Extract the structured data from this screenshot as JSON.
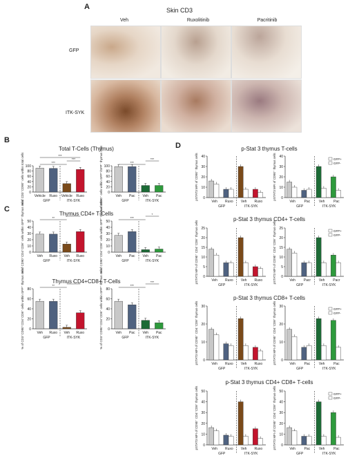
{
  "panel_a": {
    "letter": "A",
    "title": "Skin CD3",
    "columns": [
      "Veh",
      "Ruxolitinib",
      "Pacritinib"
    ],
    "rows": [
      "GFP",
      "ITK-SYK"
    ]
  },
  "panel_b": {
    "letter": "B",
    "title": "Total T-Cells (Thymus)"
  },
  "panel_c": {
    "letter": "C",
    "title1": "Thymus CD4+ T-Cells",
    "title2": "Thymus CD4+CD8+ T-Cells"
  },
  "panel_d": {
    "letter": "D",
    "titles": [
      "p-Stat 3 thymus T-cells",
      "p-Stat 3 thymus CD4+ T-cells",
      "p-Stat 3 thymus CD8+ T-cells",
      "p-Stat 3 thymus CD4+ CD8+ T-cells"
    ],
    "legend": [
      "GFP+",
      "GFP-"
    ]
  },
  "colors": {
    "veh_gfp": "#c8c8c8",
    "ruxo_gfp": "#4f6280",
    "veh_itk": "#7a4a1a",
    "ruxo_itk": "#c3142d",
    "pac_gfp": "#4f6280",
    "pac_itk": "#2e9a3c",
    "veh_itk_green": "#1c6b36"
  },
  "chart_data": [
    {
      "id": "B_left",
      "type": "bar",
      "ylabel": "% of CD3⁺CD90⁺ cells within total cells",
      "ylim": [
        0,
        100
      ],
      "yticks": [
        0,
        20,
        40,
        60,
        80,
        100
      ],
      "categories": [
        "Vehicle",
        "Ruxo",
        "Vehicle",
        "Ruxo"
      ],
      "groups": [
        "GFP",
        "ITK-SYK"
      ],
      "values": [
        91,
        90,
        32,
        86
      ],
      "sig": [
        "***",
        "***",
        "***"
      ]
    },
    {
      "id": "B_right",
      "type": "bar",
      "ylabel": "% of CD90⁺ cells within GFP⁺/GFP⁻ thymus cells",
      "ylim": [
        0,
        100
      ],
      "yticks": [
        0,
        20,
        40,
        60,
        80,
        100
      ],
      "categories": [
        "Veh",
        "Pac",
        "Veh",
        "Pac"
      ],
      "groups": [
        "GFP",
        "ITK-SYK"
      ],
      "values": [
        97,
        97,
        25,
        25
      ],
      "sig": [
        "***",
        "***"
      ]
    },
    {
      "id": "C1_left",
      "type": "bar",
      "ylabel": "% of CD90⁺CD4⁺CD8⁻ cells within GFP⁺ thymus cells",
      "ylim": [
        0,
        50
      ],
      "yticks": [
        0,
        10,
        20,
        30,
        40,
        50
      ],
      "categories": [
        "Veh",
        "Ruxo",
        "Veh",
        "Ruxo"
      ],
      "groups": [
        "GFP",
        "ITK-SYK"
      ],
      "values": [
        29,
        29,
        13,
        33
      ],
      "sig": [
        "**",
        "*"
      ]
    },
    {
      "id": "C1_right",
      "type": "bar",
      "ylabel": "% of CD90⁺CD4⁺CD8⁻ cells within GFP⁺ thymus cells",
      "ylim": [
        0,
        50
      ],
      "yticks": [
        0,
        10,
        20,
        30,
        40,
        50
      ],
      "categories": [
        "Veh",
        "Pac",
        "Veh",
        "Pac"
      ],
      "groups": [
        "GFP",
        "ITK-SYK"
      ],
      "values": [
        27,
        33,
        4,
        5
      ],
      "sig": [
        "***",
        "*"
      ]
    },
    {
      "id": "C2_left",
      "type": "bar",
      "ylabel": "% of CD3⁺CD90⁺CD4⁺CD8⁺ cells within GFP⁺ thymus cells",
      "ylim": [
        0,
        80
      ],
      "yticks": [
        0,
        20,
        40,
        60,
        80
      ],
      "categories": [
        "Veh",
        "Ruxo",
        "Veh",
        "Ruxo"
      ],
      "groups": [
        "GFP",
        "ITK-SYK"
      ],
      "values": [
        55,
        55,
        3,
        32
      ],
      "sig": [
        "**",
        "*"
      ]
    },
    {
      "id": "C2_right",
      "type": "bar",
      "ylabel": "% of CD3⁺CD90⁺CD4⁺CD8⁺ cells within GFP⁺ thymus cells",
      "ylim": [
        0,
        80
      ],
      "yticks": [
        0,
        20,
        40,
        60,
        80
      ],
      "categories": [
        "Veh",
        "Pac",
        "Veh",
        "Pac"
      ],
      "groups": [
        "GFP",
        "ITK-SYK"
      ],
      "values": [
        55,
        48,
        17,
        12
      ],
      "sig": [
        "***",
        "***"
      ]
    },
    {
      "id": "D1_left",
      "type": "bar",
      "ylabel": "pSTAT3 MFI of CD90⁺ thymus cells",
      "ylim": [
        0,
        40
      ],
      "yticks": [
        0,
        10,
        20,
        30,
        40
      ],
      "categories": [
        "Veh",
        "Ruxo",
        "Veh",
        "Ruxo"
      ],
      "groups": [
        "GFP",
        "ITK-SYK"
      ],
      "series": [
        {
          "name": "GFP+",
          "values": [
            16,
            8,
            30,
            8
          ]
        },
        {
          "name": "GFP-",
          "values": [
            13,
            8,
            8,
            5
          ]
        }
      ]
    },
    {
      "id": "D1_right",
      "type": "bar",
      "ylabel": "pSTAT3 MFI of CD90⁺ thymus cells",
      "ylim": [
        0,
        40
      ],
      "yticks": [
        0,
        10,
        20,
        30,
        40
      ],
      "categories": [
        "Veh",
        "Pac",
        "Veh",
        "Pac"
      ],
      "groups": [
        "GFP",
        "ITK-SYK"
      ],
      "series": [
        {
          "name": "GFP+",
          "values": [
            15,
            7,
            30,
            20
          ]
        },
        {
          "name": "GFP-",
          "values": [
            10,
            8,
            9,
            7
          ]
        }
      ]
    },
    {
      "id": "D2_left",
      "type": "bar",
      "ylabel": "pSTAT3 MFI of CD90⁺ CD4⁺CD8⁻ thymus cells",
      "ylim": [
        0,
        25
      ],
      "yticks": [
        0,
        5,
        10,
        15,
        20,
        25
      ],
      "categories": [
        "Veh",
        "Ruxo",
        "Veh",
        "Ruxo"
      ],
      "groups": [
        "GFP",
        "ITK-SYK"
      ],
      "series": [
        {
          "name": "GFP+",
          "values": [
            14,
            7,
            20,
            5
          ]
        },
        {
          "name": "GFP-",
          "values": [
            11,
            7,
            7,
            4
          ]
        }
      ]
    },
    {
      "id": "D2_right",
      "type": "bar",
      "ylabel": "pSTAT3 MFI of CD90⁺ CD4⁺CD8⁻ thymus cells",
      "ylim": [
        0,
        25
      ],
      "yticks": [
        0,
        5,
        10,
        15,
        20,
        25
      ],
      "categories": [
        "Veh",
        "Pacr",
        "Veh",
        "Pacr"
      ],
      "groups": [
        "GFP",
        "ITK-SYK"
      ],
      "series": [
        {
          "name": "GFP+",
          "values": [
            14,
            7,
            20,
            11
          ]
        },
        {
          "name": "GFP-",
          "values": [
            12,
            7,
            7,
            7
          ]
        }
      ]
    },
    {
      "id": "D3_left",
      "type": "bar",
      "ylabel": "pSTAT3 MFI of CD90⁺ CD4⁻CD8⁺ thymus cells",
      "ylim": [
        0,
        30
      ],
      "yticks": [
        0,
        10,
        20,
        30
      ],
      "categories": [
        "Veh",
        "Ruxo",
        "Veh",
        "Ruxo"
      ],
      "groups": [
        "GFP",
        "ITK-SYK"
      ],
      "series": [
        {
          "name": "GFP+",
          "values": [
            17,
            9,
            23,
            7
          ]
        },
        {
          "name": "GFP-",
          "values": [
            14,
            8,
            8,
            5
          ]
        }
      ]
    },
    {
      "id": "D3_right",
      "type": "bar",
      "ylabel": "pSTAT3 MFI of CD90⁺ CD4⁻CD8⁺ thymus cells",
      "ylim": [
        0,
        30
      ],
      "yticks": [
        0,
        10,
        20,
        30
      ],
      "categories": [
        "Veh",
        "Pac",
        "Veh",
        "Pac"
      ],
      "groups": [
        "GFP",
        "ITK-SYK"
      ],
      "series": [
        {
          "name": "GFP+",
          "values": [
            17,
            7,
            23,
            22
          ]
        },
        {
          "name": "GFP-",
          "values": [
            13,
            8,
            8,
            7
          ]
        }
      ]
    },
    {
      "id": "D4_left",
      "type": "bar",
      "ylabel": "pSTAT3 MFI of CD90⁺ CD4⁺CD8⁺ thymus cells",
      "ylim": [
        0,
        50
      ],
      "yticks": [
        0,
        10,
        20,
        30,
        40,
        50
      ],
      "categories": [
        "Veh",
        "Ruxo",
        "Veh",
        "Ruxo"
      ],
      "groups": [
        "GFP",
        "ITK-SYK"
      ],
      "series": [
        {
          "name": "GFP+",
          "values": [
            16,
            9,
            40,
            15
          ]
        },
        {
          "name": "GFP-",
          "values": [
            13,
            8,
            8,
            6
          ]
        }
      ]
    },
    {
      "id": "D4_right",
      "type": "bar",
      "ylabel": "pSTAT3 MFI of CD90⁺ CD4⁺CD8⁺ thymus cells",
      "ylim": [
        0,
        50
      ],
      "yticks": [
        0,
        10,
        20,
        30,
        40,
        50
      ],
      "categories": [
        "Veh",
        "Pac",
        "Veh",
        "Pac"
      ],
      "groups": [
        "GFP",
        "ITK-SYK"
      ],
      "series": [
        {
          "name": "GFP+",
          "values": [
            16,
            8,
            40,
            30
          ]
        },
        {
          "name": "GFP-",
          "values": [
            13,
            8,
            8,
            7
          ]
        }
      ]
    }
  ]
}
